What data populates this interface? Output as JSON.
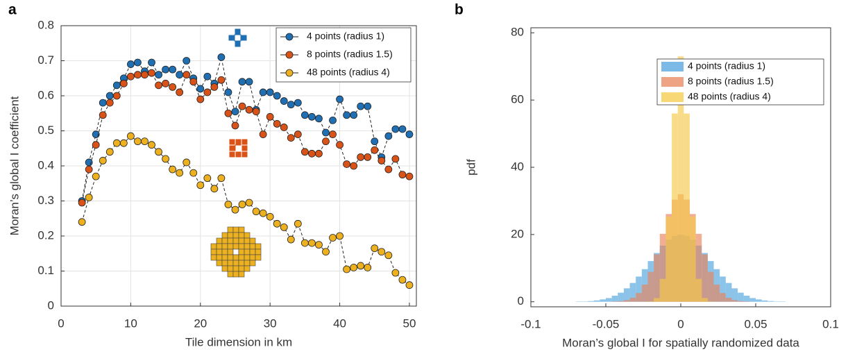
{
  "chart_data": [
    {
      "type": "line",
      "panel_label": "a",
      "xlabel": "Tile dimension in km",
      "ylabel": "Moran’s global I coefficient",
      "x": [
        3,
        4,
        5,
        6,
        7,
        8,
        9,
        10,
        11,
        12,
        13,
        14,
        15,
        16,
        17,
        18,
        19,
        20,
        21,
        22,
        23,
        24,
        25,
        26,
        27,
        28,
        29,
        30,
        31,
        32,
        33,
        34,
        35,
        36,
        37,
        38,
        39,
        40,
        41,
        42,
        43,
        44,
        45,
        46,
        47,
        48,
        49,
        50
      ],
      "series": [
        {
          "name": "4 points (radius 1)",
          "color": "#1f6fb2",
          "values": [
            0.3,
            0.41,
            0.49,
            0.58,
            0.6,
            0.63,
            0.65,
            0.69,
            0.695,
            0.67,
            0.695,
            0.66,
            0.675,
            0.675,
            0.66,
            0.7,
            0.65,
            0.62,
            0.655,
            0.635,
            0.71,
            0.61,
            0.555,
            0.64,
            0.64,
            0.56,
            0.61,
            0.61,
            0.6,
            0.585,
            0.575,
            0.58,
            0.545,
            0.54,
            0.535,
            0.495,
            0.53,
            0.59,
            0.545,
            0.545,
            0.57,
            0.57,
            0.47,
            0.425,
            0.485,
            0.505,
            0.505,
            0.49
          ]
        },
        {
          "name": "8 points (radius 1.5)",
          "color": "#d95319",
          "values": [
            0.295,
            0.39,
            0.46,
            0.545,
            0.58,
            0.6,
            0.635,
            0.655,
            0.66,
            0.66,
            0.665,
            0.63,
            0.635,
            0.625,
            0.61,
            0.66,
            0.64,
            0.59,
            0.61,
            0.625,
            0.645,
            0.55,
            0.515,
            0.57,
            0.56,
            0.555,
            0.49,
            0.54,
            0.52,
            0.51,
            0.48,
            0.49,
            0.44,
            0.435,
            0.435,
            0.47,
            0.49,
            0.46,
            0.405,
            0.4,
            0.425,
            0.425,
            0.445,
            0.415,
            0.39,
            0.42,
            0.375,
            0.37
          ]
        },
        {
          "name": "48 points (radius 4)",
          "color": "#edb120",
          "values": [
            0.24,
            0.31,
            0.37,
            0.415,
            0.44,
            0.465,
            0.465,
            0.485,
            0.47,
            0.47,
            0.46,
            0.44,
            0.42,
            0.39,
            0.38,
            0.41,
            0.38,
            0.345,
            0.365,
            0.335,
            0.365,
            0.29,
            0.275,
            0.29,
            0.295,
            0.27,
            0.265,
            0.255,
            0.235,
            0.225,
            0.19,
            0.235,
            0.18,
            0.18,
            0.175,
            0.155,
            0.195,
            0.2,
            0.105,
            0.11,
            0.115,
            0.11,
            0.165,
            0.155,
            0.145,
            0.095,
            0.075,
            0.06
          ]
        }
      ],
      "xlim": [
        0,
        51
      ],
      "xticks": [
        0,
        10,
        20,
        30,
        40,
        50
      ],
      "ylim": [
        0,
        0.8
      ],
      "yticks": [
        0,
        0.1,
        0.2,
        0.3,
        0.4,
        0.5,
        0.6,
        0.7,
        0.8
      ],
      "grid": true,
      "legend": "northeast"
    },
    {
      "type": "histogram",
      "panel_label": "b",
      "xlabel": "Moran’s global I for spatially randomized data",
      "ylabel": "pdf",
      "bins": [
        -0.07,
        -0.066,
        -0.062,
        -0.058,
        -0.054,
        -0.05,
        -0.046,
        -0.042,
        -0.038,
        -0.034,
        -0.03,
        -0.026,
        -0.022,
        -0.018,
        -0.014,
        -0.01,
        -0.006,
        -0.002,
        0.002,
        0.006,
        0.01,
        0.014,
        0.018,
        0.022,
        0.026,
        0.03,
        0.034,
        0.038,
        0.042,
        0.046,
        0.05,
        0.054,
        0.058,
        0.062,
        0.066,
        0.07
      ],
      "series": [
        {
          "name": "4 points (radius 1)",
          "color": "#4fa3dd",
          "values": [
            0.1,
            0.1,
            0.2,
            0.4,
            0.7,
            1.1,
            1.8,
            2.7,
            4.0,
            5.6,
            7.5,
            9.7,
            12.1,
            14.5,
            16.7,
            18.5,
            19.6,
            20,
            19.6,
            18.5,
            16.7,
            14.5,
            12.1,
            9.7,
            7.5,
            5.6,
            4.0,
            2.7,
            1.8,
            1.1,
            0.7,
            0.4,
            0.2,
            0.1,
            0.1
          ]
        },
        {
          "name": "8 points (radius 1.5)",
          "color": "#e8845c",
          "values": [
            0,
            0,
            0,
            0,
            0,
            0,
            0.1,
            0.2,
            0.5,
            1.2,
            2.6,
            5.1,
            8.9,
            14.1,
            20.2,
            26.1,
            30.4,
            32,
            30.4,
            26.1,
            20.2,
            14.1,
            8.9,
            5.1,
            2.6,
            1.2,
            0.5,
            0.2,
            0.1,
            0,
            0,
            0,
            0,
            0,
            0
          ]
        },
        {
          "name": "48 points (radius 4)",
          "color": "#f6c94a",
          "values": [
            0,
            0,
            0,
            0,
            0,
            0,
            0,
            0,
            0,
            0,
            0,
            0,
            0.1,
            1.1,
            6.8,
            25.3,
            56,
            73,
            56,
            25.3,
            6.8,
            1.1,
            0.1,
            0,
            0,
            0,
            0,
            0,
            0,
            0,
            0,
            0,
            0,
            0,
            0
          ]
        }
      ],
      "xlim": [
        -0.1,
        0.1
      ],
      "xticks": [
        -0.1,
        -0.05,
        0,
        0.05,
        0.1
      ],
      "ylim": [
        -1.5,
        81.5
      ],
      "yticks": [
        0,
        20,
        40,
        60,
        80
      ],
      "grid": false,
      "legend": "northeast"
    }
  ]
}
